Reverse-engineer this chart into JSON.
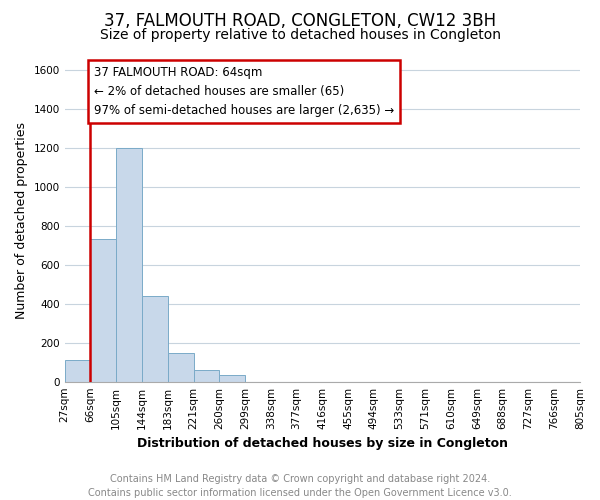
{
  "title": "37, FALMOUTH ROAD, CONGLETON, CW12 3BH",
  "subtitle": "Size of property relative to detached houses in Congleton",
  "xlabel": "Distribution of detached houses by size in Congleton",
  "ylabel": "Number of detached properties",
  "bar_values": [
    110,
    730,
    1200,
    440,
    145,
    60,
    35,
    0,
    0,
    0,
    0,
    0,
    0,
    0,
    0,
    0,
    0,
    0,
    0,
    0
  ],
  "bar_labels": [
    "27sqm",
    "66sqm",
    "105sqm",
    "144sqm",
    "183sqm",
    "221sqm",
    "260sqm",
    "299sqm",
    "338sqm",
    "377sqm",
    "416sqm",
    "455sqm",
    "494sqm",
    "533sqm",
    "571sqm",
    "610sqm",
    "649sqm",
    "688sqm",
    "727sqm",
    "766sqm",
    "805sqm"
  ],
  "bar_color": "#c8d8ea",
  "bar_edge_color": "#7aaac8",
  "annotation_box_text": "37 FALMOUTH ROAD: 64sqm\n← 2% of detached houses are smaller (65)\n97% of semi-detached houses are larger (2,635) →",
  "red_line_x": 1,
  "ylim": [
    0,
    1650
  ],
  "yticks": [
    0,
    200,
    400,
    600,
    800,
    1000,
    1200,
    1400,
    1600
  ],
  "footer_line1": "Contains HM Land Registry data © Crown copyright and database right 2024.",
  "footer_line2": "Contains public sector information licensed under the Open Government Licence v3.0.",
  "background_color": "#ffffff",
  "grid_color": "#c8d4de",
  "annotation_box_color": "#ffffff",
  "annotation_box_edge_color": "#cc0000",
  "red_line_color": "#cc0000",
  "title_fontsize": 12,
  "subtitle_fontsize": 10,
  "axis_label_fontsize": 9,
  "tick_fontsize": 7.5,
  "annotation_fontsize": 8.5,
  "footer_fontsize": 7
}
